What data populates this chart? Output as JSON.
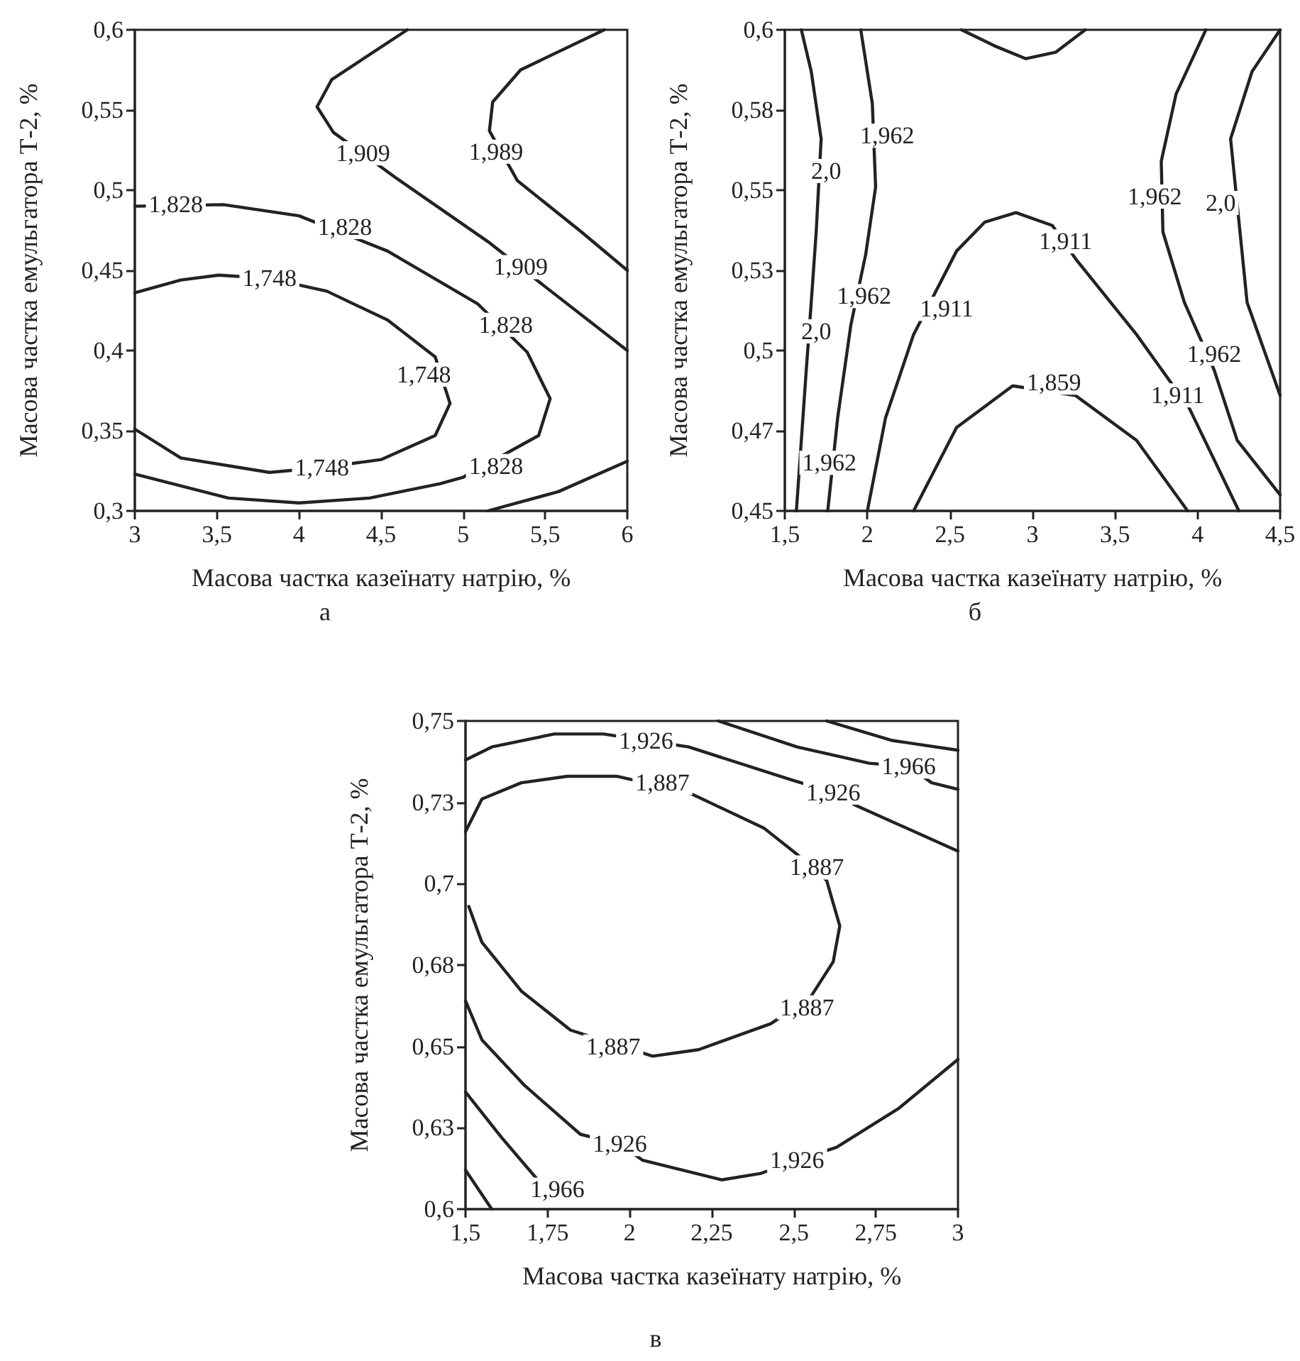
{
  "chart_data": [
    {
      "type": "line",
      "title": "а",
      "xlabel": "Масова частка казеїнату натрію, %",
      "ylabel": "Масова частка емульгатора Т-2, %",
      "marker": "none",
      "line_style": "solid",
      "xlim": [
        3,
        6
      ],
      "ylim": [
        0.3,
        0.6
      ],
      "xticks": [
        {
          "value": 3,
          "label": "3"
        },
        {
          "value": 3.5,
          "label": "3,5"
        },
        {
          "value": 4,
          "label": "4"
        },
        {
          "value": 4.5,
          "label": "4,5"
        },
        {
          "value": 5,
          "label": "5"
        },
        {
          "value": 5.5,
          "label": "5,5"
        },
        {
          "value": 6,
          "label": "6"
        }
      ],
      "yticks": [
        {
          "value": 0.3,
          "label": "0,3"
        },
        {
          "value": 0.35,
          "label": "0,35"
        },
        {
          "value": 0.4,
          "label": "0,4"
        },
        {
          "value": 0.45,
          "label": "0,45"
        },
        {
          "value": 0.5,
          "label": "0,5"
        },
        {
          "value": 0.55,
          "label": "0,55"
        },
        {
          "value": 0.6,
          "label": "0,6"
        }
      ],
      "series": [
        {
          "color": "#222222",
          "x": [
            4.66,
            4.2,
            4.11,
            4.21,
            4.6,
            5.15,
            5.51,
            6.0
          ],
          "values": [
            0.6,
            0.569,
            0.552,
            0.536,
            0.507,
            0.468,
            0.439,
            0.4
          ]
        },
        {
          "color": "#222222",
          "x": [
            5.86,
            5.35,
            5.18,
            5.16,
            5.33,
            5.72,
            6.0
          ],
          "values": [
            0.6,
            0.575,
            0.555,
            0.537,
            0.506,
            0.474,
            0.45
          ]
        },
        {
          "color": "#222222",
          "x": [
            3,
            3.54,
            4.0,
            4.54,
            5.09,
            5.39,
            5.53,
            5.46,
            5.0,
            4.86,
            4.43,
            4.0,
            3.57,
            3
          ],
          "values": [
            0.49,
            0.491,
            0.484,
            0.462,
            0.429,
            0.399,
            0.37,
            0.347,
            0.321,
            0.317,
            0.308,
            0.305,
            0.308,
            0.323
          ]
        },
        {
          "color": "#222222",
          "x": [
            3,
            3.28,
            3.51,
            3.82,
            4.17,
            4.54,
            4.83,
            4.92,
            4.83,
            4.5,
            4.14,
            3.82,
            3.28,
            3
          ],
          "values": [
            0.436,
            0.444,
            0.447,
            0.445,
            0.437,
            0.419,
            0.396,
            0.367,
            0.347,
            0.332,
            0.327,
            0.324,
            0.333,
            0.351
          ]
        },
        {
          "color": "#222222",
          "x": [
            5.15,
            5.58,
            6.0
          ],
          "values": [
            0.3,
            0.312,
            0.331
          ]
        }
      ],
      "annotations": [
        {
          "text": "1,909",
          "x": 4.39,
          "y": 0.523
        },
        {
          "text": "1,989",
          "x": 5.2,
          "y": 0.524
        },
        {
          "text": "1,828",
          "x": 3.25,
          "y": 0.491
        },
        {
          "text": "1,828",
          "x": 4.28,
          "y": 0.477
        },
        {
          "text": "1,909",
          "x": 5.35,
          "y": 0.452
        },
        {
          "text": "1,828",
          "x": 5.26,
          "y": 0.416
        },
        {
          "text": "1,748",
          "x": 3.82,
          "y": 0.445
        },
        {
          "text": "1,748",
          "x": 4.76,
          "y": 0.385
        },
        {
          "text": "1,748",
          "x": 4.14,
          "y": 0.327
        },
        {
          "text": "1,828",
          "x": 5.2,
          "y": 0.328
        }
      ]
    },
    {
      "type": "line",
      "title": "б",
      "xlabel": "Масова частка казеїнату натрію, %",
      "ylabel": "Масова частка емульгатора Т-2, %",
      "marker": "none",
      "line_style": "solid",
      "xlim": [
        1.5,
        4.5
      ],
      "ylim": [
        0.45,
        0.6
      ],
      "xticks": [
        {
          "value": 1.5,
          "label": "1,5"
        },
        {
          "value": 2,
          "label": "2"
        },
        {
          "value": 2.5,
          "label": "2,5"
        },
        {
          "value": 3,
          "label": "3"
        },
        {
          "value": 3.5,
          "label": "3,5"
        },
        {
          "value": 4,
          "label": "4"
        },
        {
          "value": 4.5,
          "label": "4,5"
        }
      ],
      "yticks": [
        {
          "value": 0.45,
          "label": "0,45"
        },
        {
          "value": 0.475,
          "label": "0,47"
        },
        {
          "value": 0.5,
          "label": "0,5"
        },
        {
          "value": 0.525,
          "label": "0,53"
        },
        {
          "value": 0.55,
          "label": "0,55"
        },
        {
          "value": 0.575,
          "label": "0,58"
        },
        {
          "value": 0.6,
          "label": "0,6"
        }
      ],
      "series": [
        {
          "color": "#222222",
          "x": [
            1.6,
            1.66,
            1.72,
            1.69,
            1.66,
            1.63,
            1.6,
            1.57
          ],
          "values": [
            0.6,
            0.587,
            0.566,
            0.537,
            0.515,
            0.494,
            0.472,
            0.45
          ]
        },
        {
          "color": "#222222",
          "x": [
            1.96,
            2.03,
            2.05,
            1.99,
            1.9,
            1.82,
            1.76
          ],
          "values": [
            0.6,
            0.577,
            0.551,
            0.53,
            0.508,
            0.479,
            0.45
          ]
        },
        {
          "color": "#222222",
          "x": [
            2.0,
            2.11,
            2.28,
            2.54,
            2.71,
            2.9,
            3.12,
            3.27,
            3.63,
            3.95,
            4.25
          ],
          "values": [
            0.45,
            0.479,
            0.505,
            0.531,
            0.54,
            0.543,
            0.539,
            0.528,
            0.505,
            0.482,
            0.45
          ]
        },
        {
          "color": "#222222",
          "x": [
            2.28,
            2.54,
            2.88,
            3.26,
            3.63,
            3.94
          ],
          "values": [
            0.45,
            0.476,
            0.489,
            0.486,
            0.472,
            0.45
          ]
        },
        {
          "color": "#222222",
          "x": [
            2.57,
            2.77,
            2.96,
            3.14,
            3.32
          ],
          "values": [
            0.6,
            0.595,
            0.591,
            0.593,
            0.6
          ]
        },
        {
          "color": "#222222",
          "x": [
            4.05,
            3.87,
            3.78,
            3.79,
            3.92,
            4.1,
            4.24,
            4.5
          ],
          "values": [
            0.6,
            0.58,
            0.559,
            0.537,
            0.515,
            0.494,
            0.472,
            0.455
          ]
        },
        {
          "color": "#222222",
          "x": [
            4.5,
            4.33,
            4.2,
            4.3,
            4.5
          ],
          "values": [
            0.6,
            0.587,
            0.566,
            0.515,
            0.486
          ]
        }
      ],
      "annotations": [
        {
          "text": "2,0",
          "x": 1.75,
          "y": 0.556
        },
        {
          "text": "1,962",
          "x": 2.12,
          "y": 0.567
        },
        {
          "text": "1,962",
          "x": 1.98,
          "y": 0.517
        },
        {
          "text": "2,0",
          "x": 1.69,
          "y": 0.506
        },
        {
          "text": "1,911",
          "x": 2.48,
          "y": 0.513
        },
        {
          "text": "1,911",
          "x": 3.2,
          "y": 0.534
        },
        {
          "text": "1,962",
          "x": 3.74,
          "y": 0.548
        },
        {
          "text": "2,0",
          "x": 4.14,
          "y": 0.546
        },
        {
          "text": "1,962",
          "x": 4.1,
          "y": 0.499
        },
        {
          "text": "1,911",
          "x": 3.88,
          "y": 0.486
        },
        {
          "text": "1,859",
          "x": 3.13,
          "y": 0.49
        },
        {
          "text": "1,962",
          "x": 1.77,
          "y": 0.465
        }
      ]
    },
    {
      "type": "line",
      "title": "в",
      "xlabel": "Масова частка казеїнату натрію, %",
      "ylabel": "Масова частка емульгатора Т-2, %",
      "marker": "none",
      "line_style": "solid",
      "xlim": [
        1.5,
        3
      ],
      "ylim": [
        0.6,
        0.75
      ],
      "xticks": [
        {
          "value": 1.5,
          "label": "1,5"
        },
        {
          "value": 1.75,
          "label": "1,75"
        },
        {
          "value": 2,
          "label": "2"
        },
        {
          "value": 2.25,
          "label": "2,25"
        },
        {
          "value": 2.5,
          "label": "2,5"
        },
        {
          "value": 2.75,
          "label": "2,75"
        },
        {
          "value": 3,
          "label": "3"
        }
      ],
      "yticks": [
        {
          "value": 0.6,
          "label": "0,6"
        },
        {
          "value": 0.625,
          "label": "0,63"
        },
        {
          "value": 0.65,
          "label": "0,65"
        },
        {
          "value": 0.675,
          "label": "0,68"
        },
        {
          "value": 0.7,
          "label": "0,7"
        },
        {
          "value": 0.725,
          "label": "0,73"
        },
        {
          "value": 0.75,
          "label": "0,75"
        }
      ],
      "series": [
        {
          "color": "#222222",
          "x": [
            1.5,
            1.58,
            1.77,
            1.92,
            2.05,
            2.18,
            2.49,
            2.62,
            2.69,
            3.0
          ],
          "values": [
            0.738,
            0.742,
            0.746,
            0.746,
            0.744,
            0.742,
            0.732,
            0.728,
            0.724,
            0.71
          ]
        },
        {
          "color": "#222222",
          "x": [
            2.27,
            2.51,
            2.73,
            2.85,
            2.92,
            3.0
          ],
          "values": [
            0.75,
            0.742,
            0.737,
            0.736,
            0.731,
            0.729
          ]
        },
        {
          "color": "#222222",
          "x": [
            2.6,
            2.8,
            3.0
          ],
          "values": [
            0.75,
            0.744,
            0.741
          ]
        },
        {
          "color": "#222222",
          "x": [
            1.5,
            1.55,
            1.67,
            1.81,
            1.96,
            2.18,
            2.41,
            2.51,
            2.6,
            2.64,
            2.62,
            2.55,
            2.43,
            2.21,
            2.07,
            1.82,
            1.67,
            1.55,
            1.51
          ],
          "values": [
            0.716,
            0.726,
            0.731,
            0.733,
            0.733,
            0.728,
            0.717,
            0.709,
            0.701,
            0.687,
            0.676,
            0.665,
            0.657,
            0.649,
            0.647,
            0.655,
            0.667,
            0.682,
            0.693
          ]
        },
        {
          "color": "#222222",
          "x": [
            1.5,
            1.55,
            1.68,
            1.85,
            1.97,
            2.04,
            2.28,
            2.4,
            2.51,
            2.63,
            2.82,
            3.0
          ],
          "values": [
            0.664,
            0.652,
            0.638,
            0.623,
            0.62,
            0.615,
            0.609,
            0.611,
            0.615,
            0.619,
            0.631,
            0.646
          ]
        },
        {
          "color": "#222222",
          "x": [
            1.5,
            1.61,
            1.72
          ],
          "values": [
            0.636,
            0.622,
            0.609
          ]
        },
        {
          "color": "#222222",
          "x": [
            1.5,
            1.58
          ],
          "values": [
            0.612,
            0.6
          ]
        }
      ],
      "annotations": [
        {
          "text": "1,926",
          "x": 2.05,
          "y": 0.744
        },
        {
          "text": "1,887",
          "x": 2.1,
          "y": 0.731
        },
        {
          "text": "1,966",
          "x": 2.85,
          "y": 0.736
        },
        {
          "text": "1,926",
          "x": 2.62,
          "y": 0.728
        },
        {
          "text": "1,887",
          "x": 2.57,
          "y": 0.705
        },
        {
          "text": "1,887",
          "x": 2.54,
          "y": 0.662
        },
        {
          "text": "1,887",
          "x": 1.95,
          "y": 0.65
        },
        {
          "text": "1,926",
          "x": 1.97,
          "y": 0.62
        },
        {
          "text": "1,926",
          "x": 2.51,
          "y": 0.615
        },
        {
          "text": "1,966",
          "x": 1.78,
          "y": 0.606
        }
      ]
    }
  ]
}
